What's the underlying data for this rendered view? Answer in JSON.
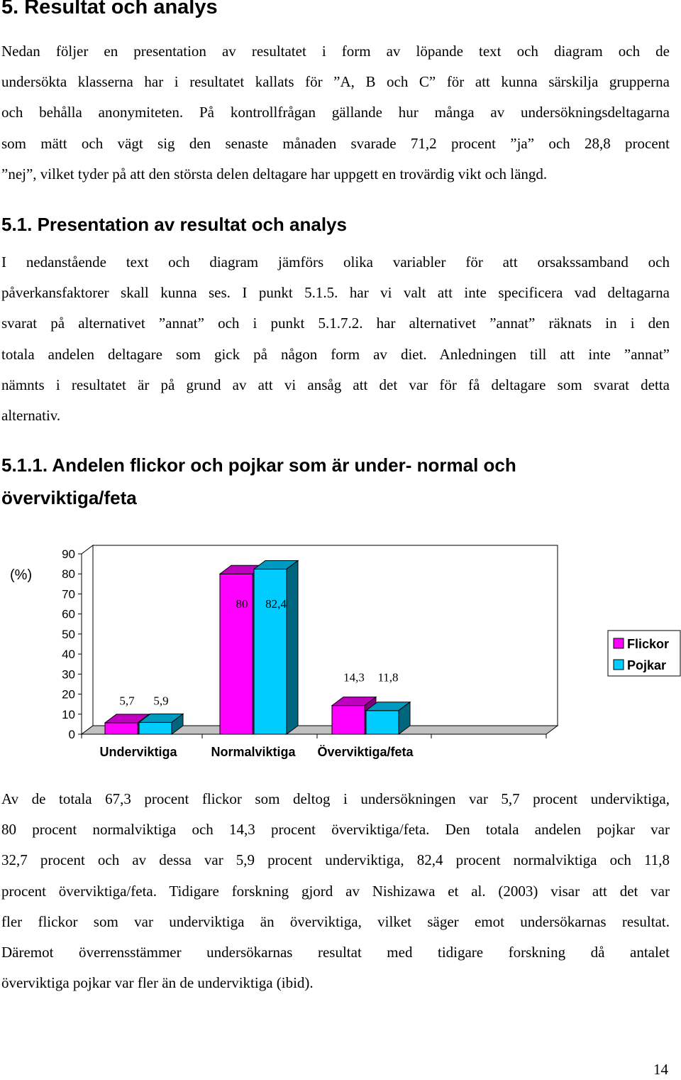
{
  "heading_main": "5. Resultat och analys",
  "intro": {
    "lines": [
      "Nedan följer en presentation av resultatet i form av löpande text och diagram och de",
      "undersökta klasserna har i resultatet kallats för ”A, B och C” för att kunna särskilja grupperna",
      "och behålla anonymiteten. På kontrollfrågan gällande hur många av undersökningsdeltagarna",
      "som mätt och vägt sig den senaste månaden svarade 71,2 procent ”ja” och 28,8 procent",
      "”nej”, vilket tyder på att den största delen deltagare har uppgett en trovärdig vikt och längd."
    ]
  },
  "heading_sub": "5.1. Presentation av resultat och analys",
  "method": {
    "lines": [
      "I nedanstående text och diagram jämförs olika variabler för att orsakssamband och",
      "påverkansfaktorer skall kunna ses. I punkt 5.1.5. har vi valt att inte specificera vad deltagarna",
      "svarat på alternativet ”annat” och i punkt 5.1.7.2. har alternativet ”annat” räknats in i den",
      "totala andelen deltagare som gick på någon form av diet. Anledningen till att inte ”annat”",
      "nämnts i resultatet är på grund av att vi ansåg att det var för få deltagare som svarat detta",
      "alternativ."
    ]
  },
  "heading_subsub_line1": "5.1.1. Andelen flickor och pojkar som är under- normal och",
  "heading_subsub_line2": "överviktiga/feta",
  "chart_data": {
    "type": "bar",
    "ylabel": "(%)",
    "ylim": [
      0,
      90
    ],
    "yticks": [
      "0",
      "10",
      "20",
      "30",
      "40",
      "50",
      "60",
      "70",
      "80",
      "90"
    ],
    "categories": [
      "Underviktiga",
      "Normalviktiga",
      "Överviktiga/feta"
    ],
    "series": [
      {
        "name": "Flickor",
        "values": [
          5.7,
          80,
          14.3
        ],
        "labels": [
          "5,7",
          "80",
          "14,3"
        ],
        "color": "#ff00ff"
      },
      {
        "name": "Pojkar",
        "values": [
          5.9,
          82.4,
          11.8
        ],
        "labels": [
          "5,9",
          "82,4",
          "11,8"
        ],
        "color": "#00ccff"
      }
    ],
    "legend_position": "right",
    "three_d": true
  },
  "results": {
    "lines": [
      "Av de totala 67,3 procent flickor som deltog i undersökningen var 5,7 procent underviktiga,",
      "80 procent normalviktiga och 14,3 procent överviktiga/feta. Den totala andelen pojkar var",
      "32,7 procent och av dessa var 5,9 procent underviktiga, 82,4 procent normalviktiga och 11,8",
      "procent överviktiga/feta. Tidigare forskning gjord av Nishizawa et al. (2003) visar att det var",
      "fler flickor som var underviktiga än överviktiga, vilket säger emot undersökarnas resultat.",
      "Däremot överrensstämmer undersökarnas resultat med tidigare forskning då antalet",
      "överviktiga pojkar var fler än de underviktiga (ibid)."
    ]
  },
  "page_number": "14"
}
